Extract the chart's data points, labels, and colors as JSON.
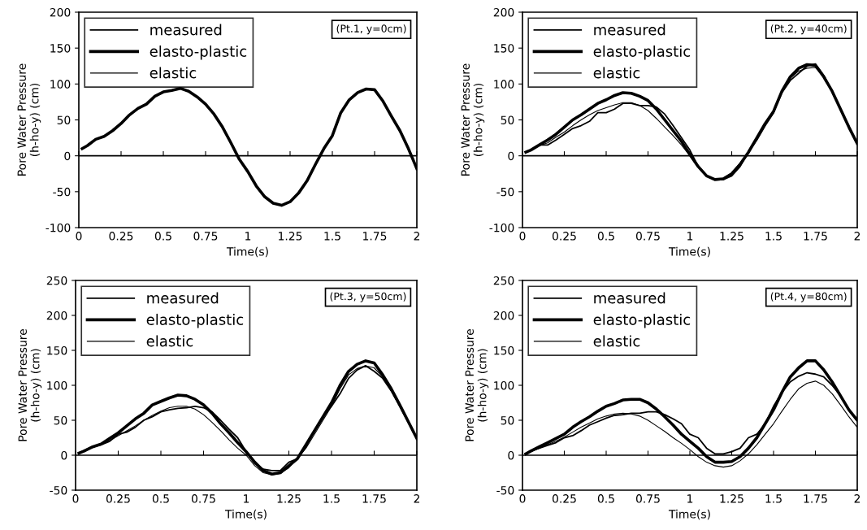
{
  "chart_data": [
    {
      "type": "line",
      "xlabel": "Time(s)",
      "ylabel": "Pore Water Pressure\n(h-ho-y) (cm)",
      "annotations": [
        "(Pt.1, y=0cm)"
      ],
      "ref_lines": [
        {
          "axis": "y",
          "value": 0,
          "color": "#000000"
        }
      ],
      "legend": "top left",
      "grid": false,
      "marker": "none",
      "line_style": "solid",
      "xlim": [
        0,
        2
      ],
      "xticks": [
        0,
        0.25,
        0.5,
        0.75,
        1,
        1.25,
        1.5,
        1.75,
        2
      ],
      "ylim": [
        -100,
        200
      ],
      "yticks": [
        -100,
        -50,
        0,
        50,
        100,
        150,
        200
      ],
      "x": [
        0.02,
        0.05,
        0.1,
        0.15,
        0.2,
        0.25,
        0.3,
        0.35,
        0.4,
        0.45,
        0.5,
        0.55,
        0.6,
        0.65,
        0.7,
        0.75,
        0.8,
        0.85,
        0.9,
        0.95,
        1.0,
        1.05,
        1.1,
        1.15,
        1.2,
        1.25,
        1.3,
        1.35,
        1.4,
        1.45,
        1.5,
        1.55,
        1.6,
        1.65,
        1.7,
        1.75,
        1.8,
        1.85,
        1.9,
        1.95,
        2.0
      ],
      "series": [
        {
          "name": "measured",
          "color": "#000000",
          "values": [
            null,
            null,
            null,
            null,
            null,
            null,
            null,
            null,
            null,
            null,
            null,
            null,
            null,
            null,
            null,
            null,
            null,
            null,
            null,
            null,
            null,
            null,
            null,
            null,
            null,
            null,
            null,
            null,
            null,
            null,
            null,
            null,
            null,
            null,
            null,
            null,
            null,
            null,
            null,
            null,
            null
          ]
        },
        {
          "name": "elasto-plastic",
          "color": "#000000",
          "values": [
            10,
            14,
            23,
            27,
            35,
            45,
            57,
            66,
            72,
            83,
            89,
            91,
            94,
            90,
            82,
            72,
            58,
            40,
            18,
            -5,
            -22,
            -42,
            -57,
            -66,
            -69,
            -64,
            -52,
            -35,
            -12,
            10,
            28,
            60,
            78,
            88,
            93,
            92,
            76,
            55,
            35,
            10,
            -18
          ]
        },
        {
          "name": "elastic",
          "color": "#000000",
          "values": [
            null,
            null,
            null,
            null,
            null,
            null,
            null,
            null,
            null,
            null,
            null,
            null,
            null,
            null,
            null,
            null,
            null,
            null,
            null,
            null,
            null,
            null,
            null,
            null,
            null,
            null,
            null,
            null,
            null,
            null,
            null,
            null,
            null,
            null,
            null,
            null,
            null,
            null,
            null,
            null,
            null
          ]
        }
      ]
    },
    {
      "type": "line",
      "xlabel": "Time(s)",
      "ylabel": "Pore Water Pressure\n(h-ho-y) (cm)",
      "annotations": [
        "(Pt.2, y=40cm)"
      ],
      "ref_lines": [
        {
          "axis": "y",
          "value": 0,
          "color": "#000000"
        }
      ],
      "legend": "top left",
      "grid": false,
      "marker": "none",
      "line_style": "solid",
      "xlim": [
        0,
        2
      ],
      "xticks": [
        0,
        0.25,
        0.5,
        0.75,
        1,
        1.25,
        1.5,
        1.75,
        2
      ],
      "ylim": [
        -100,
        200
      ],
      "yticks": [
        -100,
        -50,
        0,
        50,
        100,
        150,
        200
      ],
      "x": [
        0.02,
        0.05,
        0.1,
        0.15,
        0.2,
        0.25,
        0.3,
        0.35,
        0.4,
        0.45,
        0.5,
        0.55,
        0.6,
        0.65,
        0.7,
        0.75,
        0.8,
        0.85,
        0.9,
        0.95,
        1.0,
        1.05,
        1.1,
        1.15,
        1.2,
        1.25,
        1.3,
        1.35,
        1.4,
        1.45,
        1.5,
        1.55,
        1.6,
        1.65,
        1.7,
        1.75,
        1.8,
        1.85,
        1.9,
        1.95,
        2.0
      ],
      "series": [
        {
          "name": "measured",
          "color": "#000000",
          "values": [
            5,
            8,
            15,
            15,
            22,
            30,
            38,
            42,
            48,
            60,
            60,
            65,
            73,
            73,
            70,
            70,
            68,
            58,
            42,
            25,
            8,
            -15,
            -28,
            -34,
            -33,
            -28,
            -15,
            5,
            22,
            42,
            60,
            88,
            105,
            115,
            125,
            128,
            112,
            90,
            65,
            40,
            17
          ]
        },
        {
          "name": "elasto-plastic",
          "color": "#000000",
          "values": [
            5,
            8,
            15,
            22,
            30,
            40,
            50,
            57,
            65,
            73,
            78,
            84,
            88,
            87,
            83,
            77,
            65,
            50,
            35,
            20,
            2,
            -15,
            -28,
            -33,
            -32,
            -25,
            -12,
            5,
            25,
            45,
            62,
            90,
            110,
            122,
            127,
            126,
            110,
            90,
            65,
            40,
            17
          ]
        },
        {
          "name": "elastic",
          "color": "#000000",
          "values": [
            5,
            8,
            14,
            18,
            26,
            33,
            42,
            50,
            57,
            63,
            67,
            71,
            74,
            74,
            70,
            63,
            52,
            40,
            28,
            15,
            0,
            -16,
            -28,
            -33,
            -31,
            -24,
            -10,
            6,
            25,
            45,
            62,
            90,
            108,
            118,
            122,
            123,
            110,
            90,
            65,
            40,
            17
          ]
        }
      ]
    },
    {
      "type": "line",
      "xlabel": "Time(s)",
      "ylabel": "Pore Water Pressure\n(h-ho-y) (cm)",
      "annotations": [
        "(Pt.3, y=50cm)"
      ],
      "ref_lines": [
        {
          "axis": "y",
          "value": 0,
          "color": "#000000"
        }
      ],
      "legend": "top left",
      "grid": false,
      "marker": "none",
      "line_style": "solid",
      "xlim": [
        0,
        2
      ],
      "xticks": [
        0,
        0.25,
        0.5,
        0.75,
        1,
        1.25,
        1.5,
        1.75,
        2
      ],
      "ylim": [
        -50,
        250
      ],
      "yticks": [
        -50,
        0,
        50,
        100,
        150,
        200,
        250
      ],
      "x": [
        0.02,
        0.05,
        0.1,
        0.15,
        0.2,
        0.25,
        0.3,
        0.35,
        0.4,
        0.45,
        0.5,
        0.55,
        0.6,
        0.65,
        0.7,
        0.75,
        0.8,
        0.85,
        0.9,
        0.95,
        1.0,
        1.05,
        1.1,
        1.15,
        1.2,
        1.25,
        1.3,
        1.35,
        1.4,
        1.45,
        1.5,
        1.55,
        1.6,
        1.65,
        1.7,
        1.75,
        1.8,
        1.85,
        1.9,
        1.95,
        2.0
      ],
      "series": [
        {
          "name": "measured",
          "color": "#000000",
          "values": [
            3,
            7,
            12,
            15,
            20,
            30,
            33,
            40,
            50,
            55,
            62,
            65,
            67,
            68,
            70,
            68,
            62,
            50,
            37,
            25,
            5,
            -12,
            -20,
            -22,
            -22,
            -10,
            -5,
            12,
            35,
            55,
            70,
            88,
            110,
            122,
            128,
            120,
            110,
            92,
            70,
            47,
            24
          ]
        },
        {
          "name": "elasto-plastic",
          "color": "#000000",
          "values": [
            3,
            6,
            12,
            16,
            24,
            32,
            42,
            52,
            60,
            72,
            77,
            82,
            86,
            85,
            80,
            72,
            60,
            45,
            32,
            18,
            5,
            -10,
            -22,
            -27,
            -25,
            -15,
            -5,
            15,
            35,
            55,
            75,
            100,
            120,
            130,
            135,
            132,
            115,
            95,
            72,
            48,
            24
          ]
        },
        {
          "name": "elastic",
          "color": "#000000",
          "values": [
            3,
            6,
            11,
            15,
            21,
            28,
            35,
            42,
            50,
            57,
            63,
            68,
            70,
            70,
            66,
            58,
            47,
            35,
            22,
            10,
            0,
            -15,
            -25,
            -28,
            -26,
            -18,
            -5,
            10,
            30,
            50,
            70,
            95,
            115,
            124,
            128,
            125,
            112,
            93,
            70,
            47,
            24
          ]
        }
      ]
    },
    {
      "type": "line",
      "xlabel": "Time(s)",
      "ylabel": "Pore Water Pressure\n(h-ho-y) (cm)",
      "annotations": [
        "(Pt.4, y=80cm)"
      ],
      "ref_lines": [
        {
          "axis": "y",
          "value": 0,
          "color": "#000000"
        }
      ],
      "legend": "top left",
      "grid": false,
      "marker": "none",
      "line_style": "solid",
      "xlim": [
        0,
        2
      ],
      "xticks": [
        0,
        0.25,
        0.5,
        0.75,
        1,
        1.25,
        1.5,
        1.75,
        2
      ],
      "ylim": [
        -50,
        250
      ],
      "yticks": [
        -50,
        0,
        50,
        100,
        150,
        200,
        250
      ],
      "x": [
        0.02,
        0.05,
        0.1,
        0.15,
        0.2,
        0.25,
        0.3,
        0.35,
        0.4,
        0.45,
        0.5,
        0.55,
        0.6,
        0.65,
        0.7,
        0.75,
        0.8,
        0.85,
        0.9,
        0.95,
        1.0,
        1.05,
        1.1,
        1.15,
        1.2,
        1.25,
        1.3,
        1.35,
        1.4,
        1.45,
        1.5,
        1.55,
        1.6,
        1.65,
        1.7,
        1.75,
        1.8,
        1.85,
        1.9,
        1.95,
        2.0
      ],
      "series": [
        {
          "name": "measured",
          "color": "#000000",
          "values": [
            2,
            6,
            10,
            14,
            18,
            25,
            28,
            35,
            43,
            48,
            53,
            57,
            58,
            60,
            60,
            62,
            62,
            58,
            52,
            45,
            30,
            25,
            10,
            2,
            2,
            5,
            10,
            25,
            30,
            45,
            70,
            90,
            105,
            113,
            118,
            116,
            112,
            100,
            85,
            65,
            50
          ]
        },
        {
          "name": "elasto-plastic",
          "color": "#000000",
          "values": [
            2,
            6,
            12,
            18,
            24,
            30,
            40,
            48,
            55,
            63,
            70,
            74,
            79,
            80,
            80,
            75,
            66,
            55,
            43,
            30,
            20,
            10,
            -2,
            -10,
            -10,
            -9,
            -2,
            10,
            25,
            45,
            65,
            90,
            112,
            125,
            135,
            135,
            122,
            105,
            85,
            65,
            50
          ]
        },
        {
          "name": "elastic",
          "color": "#000000",
          "values": [
            2,
            5,
            10,
            15,
            20,
            26,
            33,
            40,
            46,
            52,
            56,
            59,
            60,
            59,
            56,
            50,
            42,
            34,
            25,
            17,
            8,
            -2,
            -10,
            -15,
            -17,
            -15,
            -8,
            2,
            15,
            30,
            45,
            63,
            80,
            95,
            103,
            106,
            100,
            88,
            72,
            55,
            40
          ]
        }
      ]
    }
  ]
}
